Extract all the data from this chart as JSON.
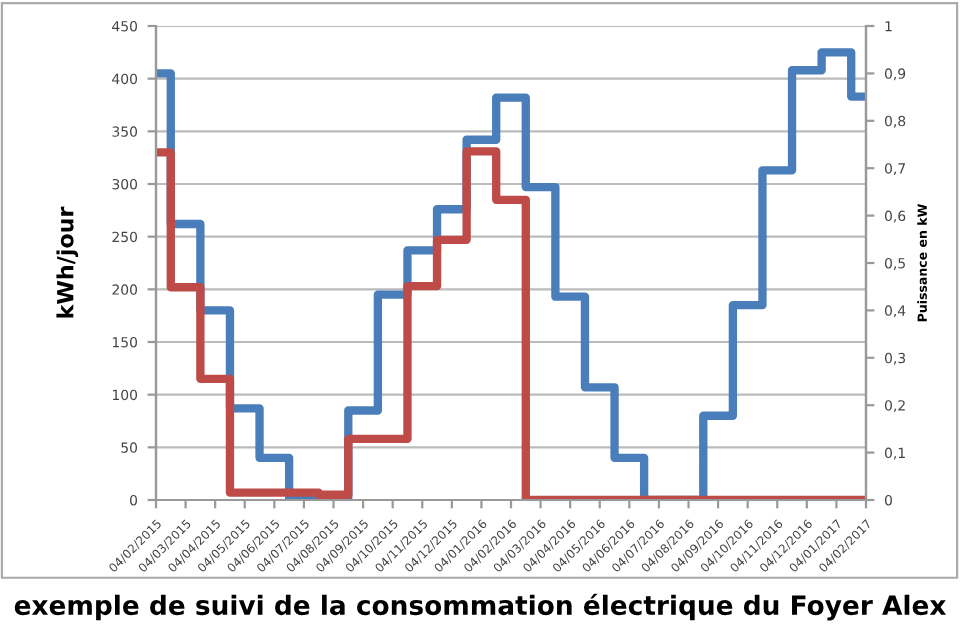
{
  "chart_data": {
    "type": "step",
    "title": "exemple de suivi de la consommation électrique du Foyer Alex",
    "ylabel": "kWh/jour",
    "y2label": "Puissance en kW",
    "categories": [
      "04/02/2015",
      "04/03/2015",
      "04/04/2015",
      "04/05/2015",
      "04/06/2015",
      "04/07/2015",
      "04/08/2015",
      "04/09/2015",
      "04/10/2015",
      "04/11/2015",
      "04/12/2015",
      "04/01/2016",
      "04/02/2016",
      "04/03/2016",
      "04/04/2016",
      "04/05/2016",
      "04/06/2016",
      "04/07/2016",
      "04/08/2016",
      "04/09/2016",
      "04/10/2016",
      "04/11/2016",
      "04/12/2016",
      "04/01/2017",
      "04/02/2017"
    ],
    "series": [
      {
        "color": "#4a7ebb",
        "values": [
          405,
          262,
          180,
          87,
          40,
          0,
          0,
          85,
          195,
          237,
          276,
          342,
          382,
          297,
          193,
          107,
          40,
          0,
          0,
          80,
          185,
          313,
          408,
          425,
          383
        ]
      },
      {
        "color": "#be4b48",
        "values": [
          330,
          202,
          115,
          7,
          7,
          7,
          5,
          58,
          58,
          203,
          247,
          331,
          285,
          0,
          0,
          0,
          0,
          0,
          0,
          0,
          0,
          0,
          0,
          0,
          0
        ]
      }
    ],
    "ylim": [
      0,
      450
    ],
    "yticks": [
      0,
      50,
      100,
      150,
      200,
      250,
      300,
      350,
      400,
      450
    ],
    "y2lim": [
      0,
      1
    ],
    "y2ticks": [
      0,
      {
        "value": 0.1,
        "label": "0,1"
      },
      {
        "value": 0.2,
        "label": "0,2"
      },
      {
        "value": 0.3,
        "label": "0,3"
      },
      {
        "value": 0.4,
        "label": "0,4"
      },
      {
        "value": 0.5,
        "label": "0,5"
      },
      {
        "value": 0.6,
        "label": "0,6"
      },
      {
        "value": 0.7,
        "label": "0,7"
      },
      {
        "value": 0.8,
        "label": "0,8"
      },
      {
        "value": 0.9,
        "label": "0,9"
      },
      1
    ],
    "grid": "y",
    "line_style": "solid"
  }
}
